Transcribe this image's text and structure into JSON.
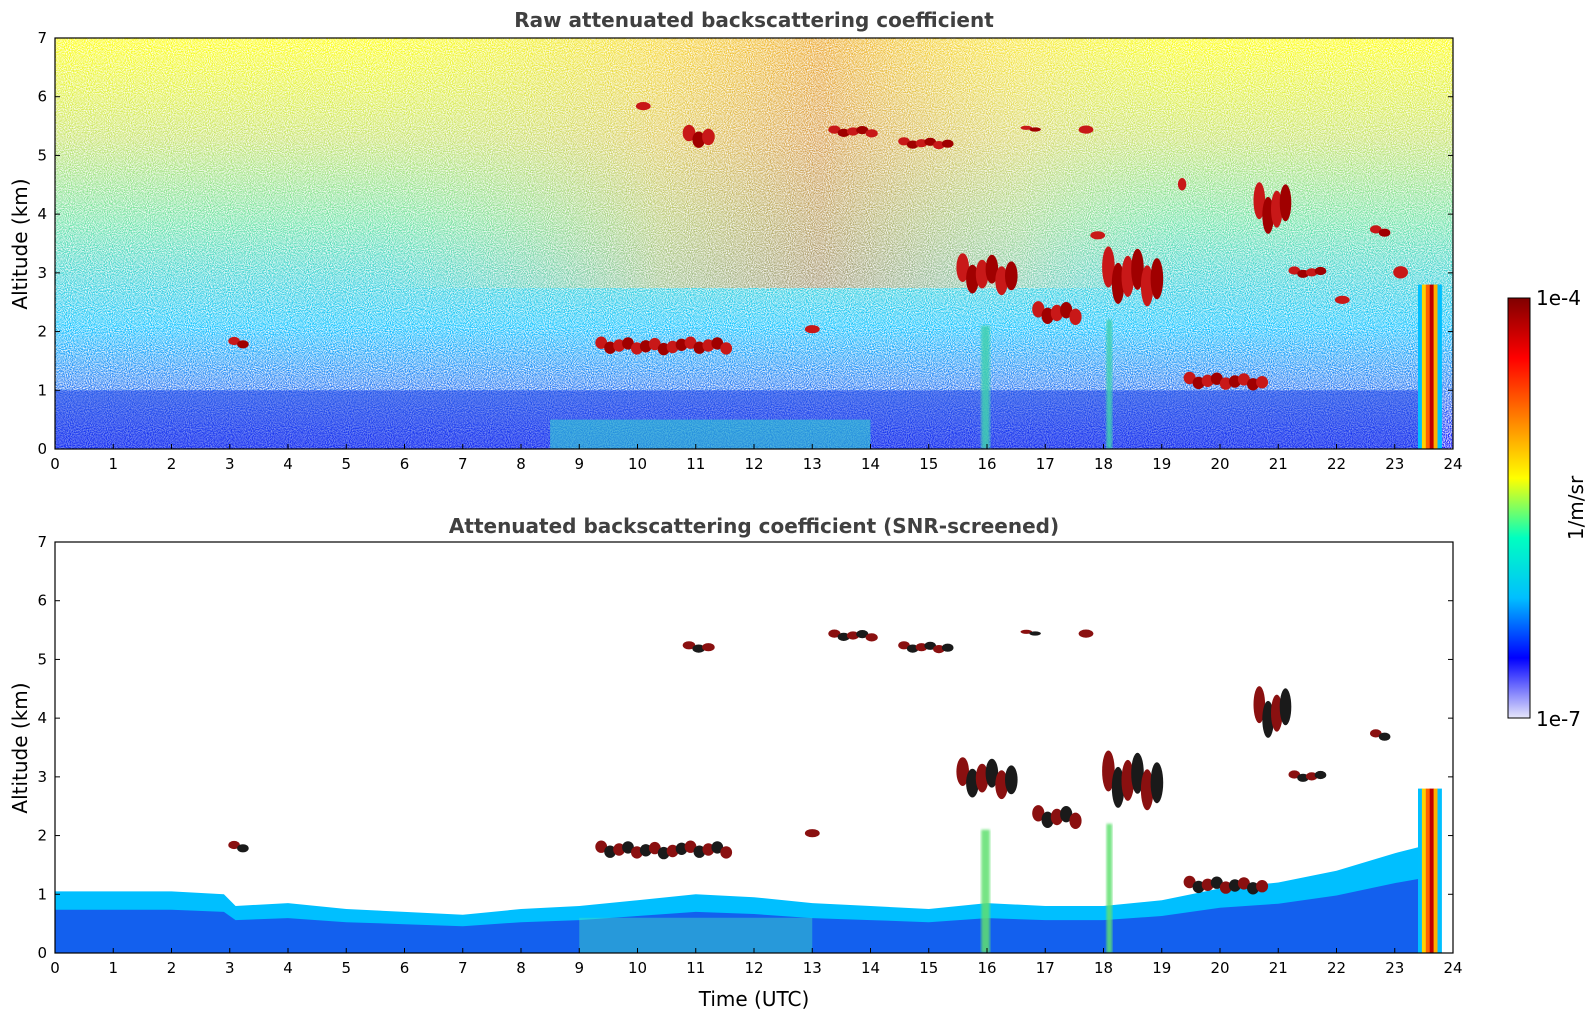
{
  "chart_data": [
    {
      "type": "heatmap",
      "title": "Raw attenuated backscattering coefficient",
      "xlabel": "",
      "ylabel": "Altitude (km)",
      "xlim": [
        0,
        24
      ],
      "ylim": [
        0,
        7
      ],
      "x_ticks": [
        "0",
        "1",
        "2",
        "3",
        "4",
        "5",
        "6",
        "7",
        "8",
        "9",
        "10",
        "11",
        "12",
        "13",
        "14",
        "15",
        "16",
        "17",
        "18",
        "19",
        "20",
        "21",
        "22",
        "23",
        "24"
      ],
      "y_ticks": [
        "0",
        "1",
        "2",
        "3",
        "4",
        "5",
        "6",
        "7"
      ],
      "grid": false,
      "screened": false,
      "features": [
        {
          "kind": "boundary_layer",
          "x": [
            0,
            23.8
          ],
          "y": [
            0,
            1.0
          ]
        },
        {
          "kind": "cloud",
          "x": [
            3.0,
            3.3
          ],
          "y": [
            1.7,
            1.9
          ]
        },
        {
          "kind": "cloud",
          "x": [
            9.3,
            11.6
          ],
          "y": [
            1.6,
            1.9
          ]
        },
        {
          "kind": "cloud",
          "x": [
            12.9,
            13.1
          ],
          "y": [
            1.9,
            2.1
          ]
        },
        {
          "kind": "cloud",
          "x": [
            10.0,
            10.2
          ],
          "y": [
            5.7,
            5.9
          ]
        },
        {
          "kind": "cloud",
          "x": [
            10.8,
            11.3
          ],
          "y": [
            5.1,
            5.5
          ]
        },
        {
          "kind": "cloud",
          "x": [
            13.3,
            14.1
          ],
          "y": [
            5.3,
            5.5
          ]
        },
        {
          "kind": "cloud",
          "x": [
            14.5,
            15.4
          ],
          "y": [
            5.1,
            5.3
          ]
        },
        {
          "kind": "cloud",
          "x": [
            16.6,
            16.9
          ],
          "y": [
            5.4,
            5.5
          ]
        },
        {
          "kind": "cloud",
          "x": [
            17.6,
            17.8
          ],
          "y": [
            5.3,
            5.5
          ]
        },
        {
          "kind": "cloud",
          "x": [
            15.5,
            16.5
          ],
          "y": [
            2.6,
            3.3
          ]
        },
        {
          "kind": "cloud",
          "x": [
            16.8,
            17.6
          ],
          "y": [
            2.1,
            2.5
          ]
        },
        {
          "kind": "cloud",
          "x": [
            17.8,
            18.0
          ],
          "y": [
            3.5,
            3.7
          ]
        },
        {
          "kind": "cloud",
          "x": [
            18.0,
            19.0
          ],
          "y": [
            2.4,
            3.4
          ]
        },
        {
          "kind": "cloud",
          "x": [
            19.3,
            19.4
          ],
          "y": [
            4.3,
            4.6
          ]
        },
        {
          "kind": "cloud",
          "x": [
            19.4,
            20.8
          ],
          "y": [
            1.0,
            1.3
          ]
        },
        {
          "kind": "cloud",
          "x": [
            20.6,
            21.2
          ],
          "y": [
            3.6,
            4.5
          ]
        },
        {
          "kind": "cloud",
          "x": [
            21.2,
            21.8
          ],
          "y": [
            2.9,
            3.1
          ]
        },
        {
          "kind": "cloud",
          "x": [
            22.0,
            22.2
          ],
          "y": [
            2.4,
            2.6
          ]
        },
        {
          "kind": "cloud",
          "x": [
            22.6,
            22.9
          ],
          "y": [
            3.6,
            3.8
          ]
        },
        {
          "kind": "cloud",
          "x": [
            23.0,
            23.2
          ],
          "y": [
            2.8,
            3.1
          ]
        },
        {
          "kind": "precipitation",
          "x": [
            23.4,
            23.8
          ],
          "y": [
            0,
            2.8
          ]
        },
        {
          "kind": "plume",
          "x": [
            15.9,
            16.05
          ],
          "y": [
            0,
            2.1
          ]
        },
        {
          "kind": "plume",
          "x": [
            18.05,
            18.15
          ],
          "y": [
            0,
            2.2
          ]
        }
      ]
    },
    {
      "type": "heatmap",
      "title": "Attenuated backscattering coefficient (SNR-screened)",
      "xlabel": "Time (UTC)",
      "ylabel": "Altitude (km)",
      "xlim": [
        0,
        24
      ],
      "ylim": [
        0,
        7
      ],
      "x_ticks": [
        "0",
        "1",
        "2",
        "3",
        "4",
        "5",
        "6",
        "7",
        "8",
        "9",
        "10",
        "11",
        "12",
        "13",
        "14",
        "15",
        "16",
        "17",
        "18",
        "19",
        "20",
        "21",
        "22",
        "23",
        "24"
      ],
      "y_ticks": [
        "0",
        "1",
        "2",
        "3",
        "4",
        "5",
        "6",
        "7"
      ],
      "grid": false,
      "screened": true,
      "boundary_layer_top_km": [
        [
          0,
          1.05
        ],
        [
          1,
          1.05
        ],
        [
          2,
          1.05
        ],
        [
          2.9,
          1.0
        ],
        [
          3.1,
          0.8
        ],
        [
          4,
          0.85
        ],
        [
          5,
          0.75
        ],
        [
          6,
          0.7
        ],
        [
          7,
          0.65
        ],
        [
          8,
          0.75
        ],
        [
          9,
          0.8
        ],
        [
          10,
          0.9
        ],
        [
          11,
          1.0
        ],
        [
          12,
          0.95
        ],
        [
          13,
          0.85
        ],
        [
          14,
          0.8
        ],
        [
          15,
          0.75
        ],
        [
          16,
          0.85
        ],
        [
          17,
          0.8
        ],
        [
          18,
          0.8
        ],
        [
          19,
          0.9
        ],
        [
          20,
          1.1
        ],
        [
          21,
          1.2
        ],
        [
          22,
          1.4
        ],
        [
          23,
          1.7
        ],
        [
          23.8,
          1.9
        ]
      ],
      "features": [
        {
          "kind": "cloud",
          "x": [
            3.0,
            3.3
          ],
          "y": [
            1.7,
            1.9
          ]
        },
        {
          "kind": "cloud",
          "x": [
            9.3,
            11.6
          ],
          "y": [
            1.6,
            1.9
          ]
        },
        {
          "kind": "cloud",
          "x": [
            12.9,
            13.1
          ],
          "y": [
            1.9,
            2.1
          ]
        },
        {
          "kind": "cloud",
          "x": [
            10.8,
            11.3
          ],
          "y": [
            5.1,
            5.3
          ]
        },
        {
          "kind": "cloud",
          "x": [
            13.3,
            14.1
          ],
          "y": [
            5.3,
            5.5
          ]
        },
        {
          "kind": "cloud",
          "x": [
            14.5,
            15.4
          ],
          "y": [
            5.1,
            5.3
          ]
        },
        {
          "kind": "cloud",
          "x": [
            16.6,
            16.9
          ],
          "y": [
            5.4,
            5.5
          ]
        },
        {
          "kind": "cloud",
          "x": [
            17.6,
            17.8
          ],
          "y": [
            5.3,
            5.5
          ]
        },
        {
          "kind": "cloud",
          "x": [
            15.5,
            16.5
          ],
          "y": [
            2.6,
            3.3
          ]
        },
        {
          "kind": "cloud",
          "x": [
            16.8,
            17.6
          ],
          "y": [
            2.1,
            2.5
          ]
        },
        {
          "kind": "cloud",
          "x": [
            18.0,
            19.0
          ],
          "y": [
            2.4,
            3.4
          ]
        },
        {
          "kind": "cloud",
          "x": [
            19.4,
            20.8
          ],
          "y": [
            1.0,
            1.3
          ]
        },
        {
          "kind": "cloud",
          "x": [
            20.6,
            21.2
          ],
          "y": [
            3.6,
            4.5
          ]
        },
        {
          "kind": "cloud",
          "x": [
            21.2,
            21.8
          ],
          "y": [
            2.9,
            3.1
          ]
        },
        {
          "kind": "cloud",
          "x": [
            22.6,
            22.9
          ],
          "y": [
            3.6,
            3.8
          ]
        },
        {
          "kind": "precipitation",
          "x": [
            23.4,
            23.8
          ],
          "y": [
            0,
            2.8
          ]
        },
        {
          "kind": "plume",
          "x": [
            15.9,
            16.05
          ],
          "y": [
            0,
            2.1
          ]
        },
        {
          "kind": "plume",
          "x": [
            18.05,
            18.15
          ],
          "y": [
            0,
            2.2
          ]
        }
      ]
    }
  ],
  "colorbar": {
    "max_label": "1e-4",
    "min_label": "1e-7",
    "label": "1/m/sr",
    "colors": [
      "#e6e6fa",
      "#0000ff",
      "#00bfff",
      "#00ffc0",
      "#ffff00",
      "#ff8000",
      "#ff0000",
      "#800000"
    ]
  }
}
